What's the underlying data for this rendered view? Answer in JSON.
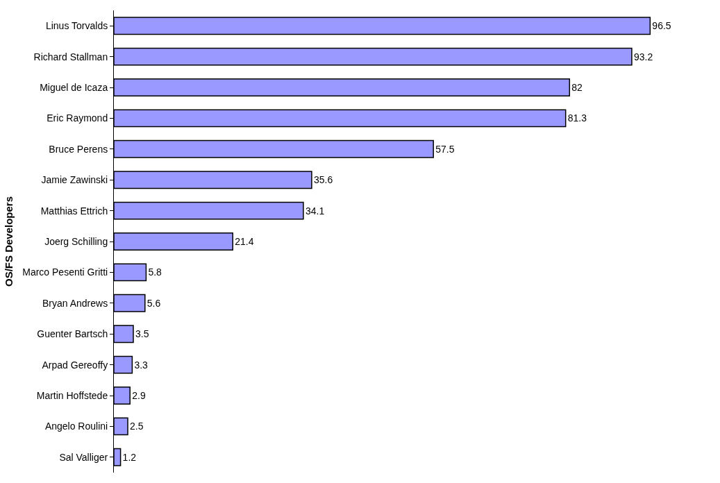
{
  "chart_data": {
    "type": "bar",
    "orientation": "horizontal",
    "ylabel": "OS/FS Developers",
    "categories": [
      "Linus Torvalds",
      "Richard Stallman",
      "Miguel de Icaza",
      "Eric Raymond",
      "Bruce Perens",
      "Jamie Zawinski",
      "Matthias Ettrich",
      "Joerg Schilling",
      "Marco Pesenti Gritti",
      "Bryan Andrews",
      "Guenter Bartsch",
      "Arpad Gereoffy",
      "Martin Hoffstede",
      "Angelo Roulini",
      "Sal Valliger"
    ],
    "values": [
      96.5,
      93.2,
      82,
      81.3,
      57.5,
      35.6,
      34.1,
      21.4,
      5.8,
      5.6,
      3.5,
      3.3,
      2.9,
      2.5,
      1.2
    ],
    "color": "#9999ff",
    "data_labels": true
  }
}
